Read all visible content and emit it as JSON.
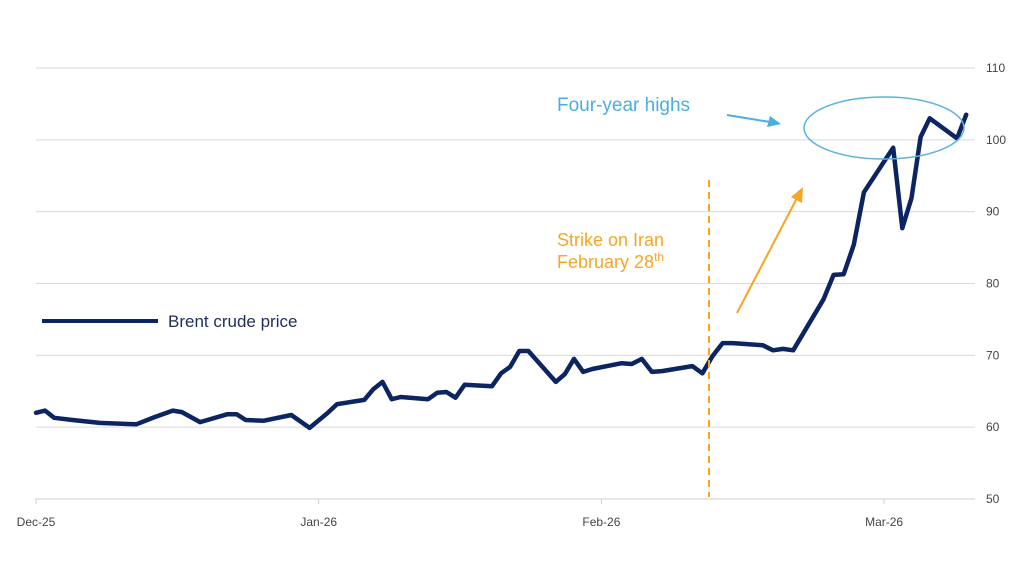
{
  "chart_data": {
    "type": "line",
    "title": "",
    "xlabel": "",
    "ylabel": "",
    "ylim": [
      50,
      110
    ],
    "yticks": [
      50,
      60,
      70,
      80,
      90,
      100,
      110
    ],
    "y_axis_side": "right",
    "grid": "horizontal",
    "xtick_labels": [
      {
        "label": "Dec-25",
        "date": "2025-12-01"
      },
      {
        "label": "Jan-26",
        "date": "2026-01-01"
      },
      {
        "label": "Feb-26",
        "date": "2026-02-01"
      },
      {
        "label": "Mar-26",
        "date": "2026-03-01"
      }
    ],
    "legend": {
      "placement": "left",
      "entries": [
        "Brent crude price"
      ]
    },
    "series": [
      {
        "name": "Brent crude price",
        "color": "#0c2461",
        "points": [
          [
            "2025-12-01",
            62.0
          ],
          [
            "2025-12-02",
            62.3
          ],
          [
            "2025-12-03",
            61.3
          ],
          [
            "2025-12-05",
            61.0
          ],
          [
            "2025-12-08",
            60.6
          ],
          [
            "2025-12-12",
            60.4
          ],
          [
            "2025-12-14",
            61.4
          ],
          [
            "2025-12-16",
            62.3
          ],
          [
            "2025-12-17",
            62.1
          ],
          [
            "2025-12-19",
            60.7
          ],
          [
            "2025-12-22",
            61.8
          ],
          [
            "2025-12-23",
            61.8
          ],
          [
            "2025-12-24",
            61.0
          ],
          [
            "2025-12-26",
            60.9
          ],
          [
            "2025-12-29",
            61.7
          ],
          [
            "2025-12-31",
            59.9
          ],
          [
            "2026-01-02",
            62.0
          ],
          [
            "2026-01-03",
            63.2
          ],
          [
            "2026-01-06",
            63.8
          ],
          [
            "2026-01-07",
            65.3
          ],
          [
            "2026-01-08",
            66.3
          ],
          [
            "2026-01-09",
            63.9
          ],
          [
            "2026-01-10",
            64.2
          ],
          [
            "2026-01-13",
            63.9
          ],
          [
            "2026-01-14",
            64.8
          ],
          [
            "2026-01-15",
            64.9
          ],
          [
            "2026-01-16",
            64.1
          ],
          [
            "2026-01-17",
            65.9
          ],
          [
            "2026-01-20",
            65.7
          ],
          [
            "2026-01-21",
            67.5
          ],
          [
            "2026-01-22",
            68.4
          ],
          [
            "2026-01-23",
            70.6
          ],
          [
            "2026-01-24",
            70.6
          ],
          [
            "2026-01-27",
            66.3
          ],
          [
            "2026-01-28",
            67.4
          ],
          [
            "2026-01-29",
            69.5
          ],
          [
            "2026-01-30",
            67.7
          ],
          [
            "2026-01-31",
            68.1
          ],
          [
            "2026-02-03",
            68.9
          ],
          [
            "2026-02-04",
            68.8
          ],
          [
            "2026-02-05",
            69.5
          ],
          [
            "2026-02-06",
            67.7
          ],
          [
            "2026-02-07",
            67.8
          ],
          [
            "2026-02-10",
            68.5
          ],
          [
            "2026-02-11",
            67.5
          ],
          [
            "2026-02-12",
            69.9
          ],
          [
            "2026-02-13",
            71.7
          ],
          [
            "2026-02-14",
            71.7
          ],
          [
            "2026-02-17",
            71.4
          ],
          [
            "2026-02-18",
            70.7
          ],
          [
            "2026-02-19",
            70.9
          ],
          [
            "2026-02-20",
            70.7
          ],
          [
            "2026-02-23",
            77.8
          ],
          [
            "2026-02-24",
            81.2
          ],
          [
            "2026-02-25",
            81.3
          ],
          [
            "2026-02-26",
            85.4
          ],
          [
            "2026-02-27",
            92.7
          ],
          [
            "2026-03-02",
            98.9
          ],
          [
            "2026-03-03",
            87.7
          ],
          [
            "2026-03-04",
            91.9
          ],
          [
            "2026-03-05",
            100.4
          ],
          [
            "2026-03-06",
            103.0
          ],
          [
            "2026-03-09",
            100.2
          ],
          [
            "2026-03-10",
            103.5
          ]
        ]
      }
    ],
    "annotations": {
      "highs_label": "Four-year highs",
      "highs_color": "#4aaee0",
      "strike_line1": "Strike on Iran",
      "strike_line2": "February 28",
      "strike_sup": "th",
      "strike_color": "#f5a623",
      "strike_date": "2026-02-12"
    }
  }
}
